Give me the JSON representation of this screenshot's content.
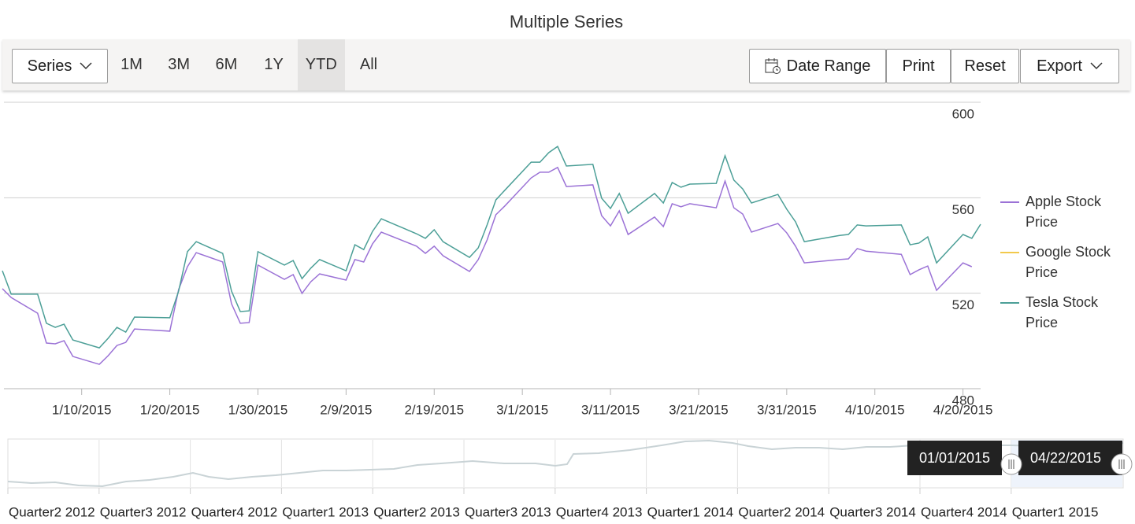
{
  "chart_data": {
    "type": "line",
    "title": "Multiple Series",
    "x": [
      "1/1/2015",
      "1/2/2015",
      "1/5/2015",
      "1/6/2015",
      "1/7/2015",
      "1/8/2015",
      "1/9/2015",
      "1/12/2015",
      "1/13/2015",
      "1/14/2015",
      "1/15/2015",
      "1/16/2015",
      "1/20/2015",
      "1/21/2015",
      "1/22/2015",
      "1/23/2015",
      "1/26/2015",
      "1/27/2015",
      "1/28/2015",
      "1/29/2015",
      "1/30/2015",
      "2/2/2015",
      "2/3/2015",
      "2/4/2015",
      "2/5/2015",
      "2/6/2015",
      "2/9/2015",
      "2/10/2015",
      "2/11/2015",
      "2/12/2015",
      "2/13/2015",
      "2/17/2015",
      "2/18/2015",
      "2/19/2015",
      "2/20/2015",
      "2/23/2015",
      "2/24/2015",
      "2/25/2015",
      "2/26/2015",
      "2/27/2015",
      "3/2/2015",
      "3/3/2015",
      "3/4/2015",
      "3/5/2015",
      "3/6/2015",
      "3/9/2015",
      "3/10/2015",
      "3/11/2015",
      "3/12/2015",
      "3/13/2015",
      "3/16/2015",
      "3/17/2015",
      "3/18/2015",
      "3/19/2015",
      "3/20/2015",
      "3/23/2015",
      "3/24/2015",
      "3/25/2015",
      "3/26/2015",
      "3/27/2015",
      "3/30/2015",
      "3/31/2015",
      "4/1/2015",
      "4/2/2015",
      "4/6/2015",
      "4/7/2015",
      "4/8/2015",
      "4/9/2015",
      "4/13/2015",
      "4/14/2015",
      "4/15/2015",
      "4/16/2015",
      "4/17/2015",
      "4/20/2015",
      "4/21/2015",
      "4/22/2015"
    ],
    "series": [
      {
        "name": "Apple Stock Price",
        "color": "#9b72d6",
        "values": [
          521.9,
          518.2,
          511.6,
          499.1,
          498.8,
          500.1,
          493.5,
          490.2,
          493.8,
          498.1,
          499.4,
          505.0,
          504.1,
          521.5,
          531.1,
          537.0,
          533.1,
          515.6,
          507.4,
          507.7,
          531.8,
          525.8,
          527.8,
          519.9,
          524.8,
          528.1,
          525.5,
          534.1,
          533.1,
          540.7,
          545.6,
          539.7,
          536.7,
          539.7,
          535.7,
          529.1,
          534.1,
          542.3,
          552.9,
          556.5,
          568.3,
          570.7,
          570.7,
          572.7,
          564.7,
          565.4,
          552.5,
          548.2,
          554.5,
          544.6,
          551.9,
          547.9,
          557.5,
          556.2,
          557.5,
          555.8,
          567.0,
          555.8,
          553.2,
          545.6,
          549.2,
          545.3,
          539.7,
          532.7,
          534.1,
          534.4,
          538.7,
          537.6,
          536.3,
          527.8,
          529.8,
          531.4,
          521.2,
          532.7,
          531.1,
          null
        ]
      },
      {
        "name": "Google Stock Price",
        "color": "#f2c94c",
        "values": [
          null,
          null,
          null,
          null,
          null,
          null,
          null,
          null,
          null,
          null,
          null,
          null,
          null,
          null,
          null,
          null,
          null,
          null,
          null,
          null,
          null,
          null,
          null,
          null,
          null,
          null,
          null,
          null,
          null,
          null,
          null,
          null,
          null,
          null,
          null,
          null,
          null,
          null,
          null,
          null,
          null,
          null,
          null,
          null,
          null,
          null,
          null,
          null,
          null,
          null,
          null,
          null,
          null,
          null,
          null,
          null,
          null,
          null,
          null,
          null,
          null,
          null,
          null,
          null,
          null,
          null,
          null,
          null,
          null,
          null,
          null,
          null,
          null,
          null,
          null,
          null
        ]
      },
      {
        "name": "Tesla Stock Price",
        "color": "#4c9f97",
        "values": [
          529.4,
          519.6,
          519.6,
          507.4,
          505.7,
          507.0,
          500.4,
          497.1,
          501.1,
          505.7,
          503.7,
          510.0,
          509.7,
          520.9,
          537.4,
          541.6,
          536.7,
          520.9,
          512.3,
          512.6,
          537.4,
          531.8,
          533.7,
          526.1,
          530.5,
          534.1,
          529.4,
          540.3,
          538.3,
          545.9,
          551.2,
          544.9,
          543.0,
          546.6,
          541.6,
          535.0,
          539.0,
          548.6,
          559.1,
          563.1,
          574.9,
          574.9,
          578.9,
          581.5,
          573.3,
          574.0,
          559.8,
          555.5,
          561.8,
          553.5,
          561.8,
          557.8,
          566.4,
          564.4,
          565.7,
          566.0,
          577.6,
          567.4,
          563.7,
          557.8,
          561.4,
          555.2,
          549.9,
          541.6,
          544.2,
          544.6,
          548.6,
          548.2,
          548.6,
          540.3,
          541.0,
          543.6,
          532.7,
          544.6,
          543.0,
          548.9
        ]
      }
    ],
    "xlim": [
      "1/1/2015",
      "4/22/2015"
    ],
    "xticks": [
      "1/10/2015",
      "1/20/2015",
      "1/30/2015",
      "2/9/2015",
      "2/19/2015",
      "3/1/2015",
      "3/11/2015",
      "3/21/2015",
      "3/31/2015",
      "4/10/2015",
      "4/20/2015"
    ],
    "ylim": [
      480,
      600
    ],
    "yticks": [
      480,
      520,
      560,
      600
    ],
    "y_axis_side": "right",
    "grid": true,
    "legend": "right"
  },
  "toolbar": {
    "series_button": "Series",
    "periods": [
      "1M",
      "3M",
      "6M",
      "1Y",
      "YTD",
      "All"
    ],
    "selected_index": 4,
    "actions": [
      "Date Range",
      "Print",
      "Reset",
      "Export"
    ]
  },
  "navigator": {
    "period_labels": [
      "Quarter2 2012",
      "Quarter3 2012",
      "Quarter4 2012",
      "Quarter1 2013",
      "Quarter2 2013",
      "Quarter3 2013",
      "Quarter4 2013",
      "Quarter1 2014",
      "Quarter2 2014",
      "Quarter3 2014",
      "Quarter4 2014",
      "Quarter1 2015"
    ],
    "start_label": "01/01/2015",
    "end_label": "04/22/2015"
  }
}
